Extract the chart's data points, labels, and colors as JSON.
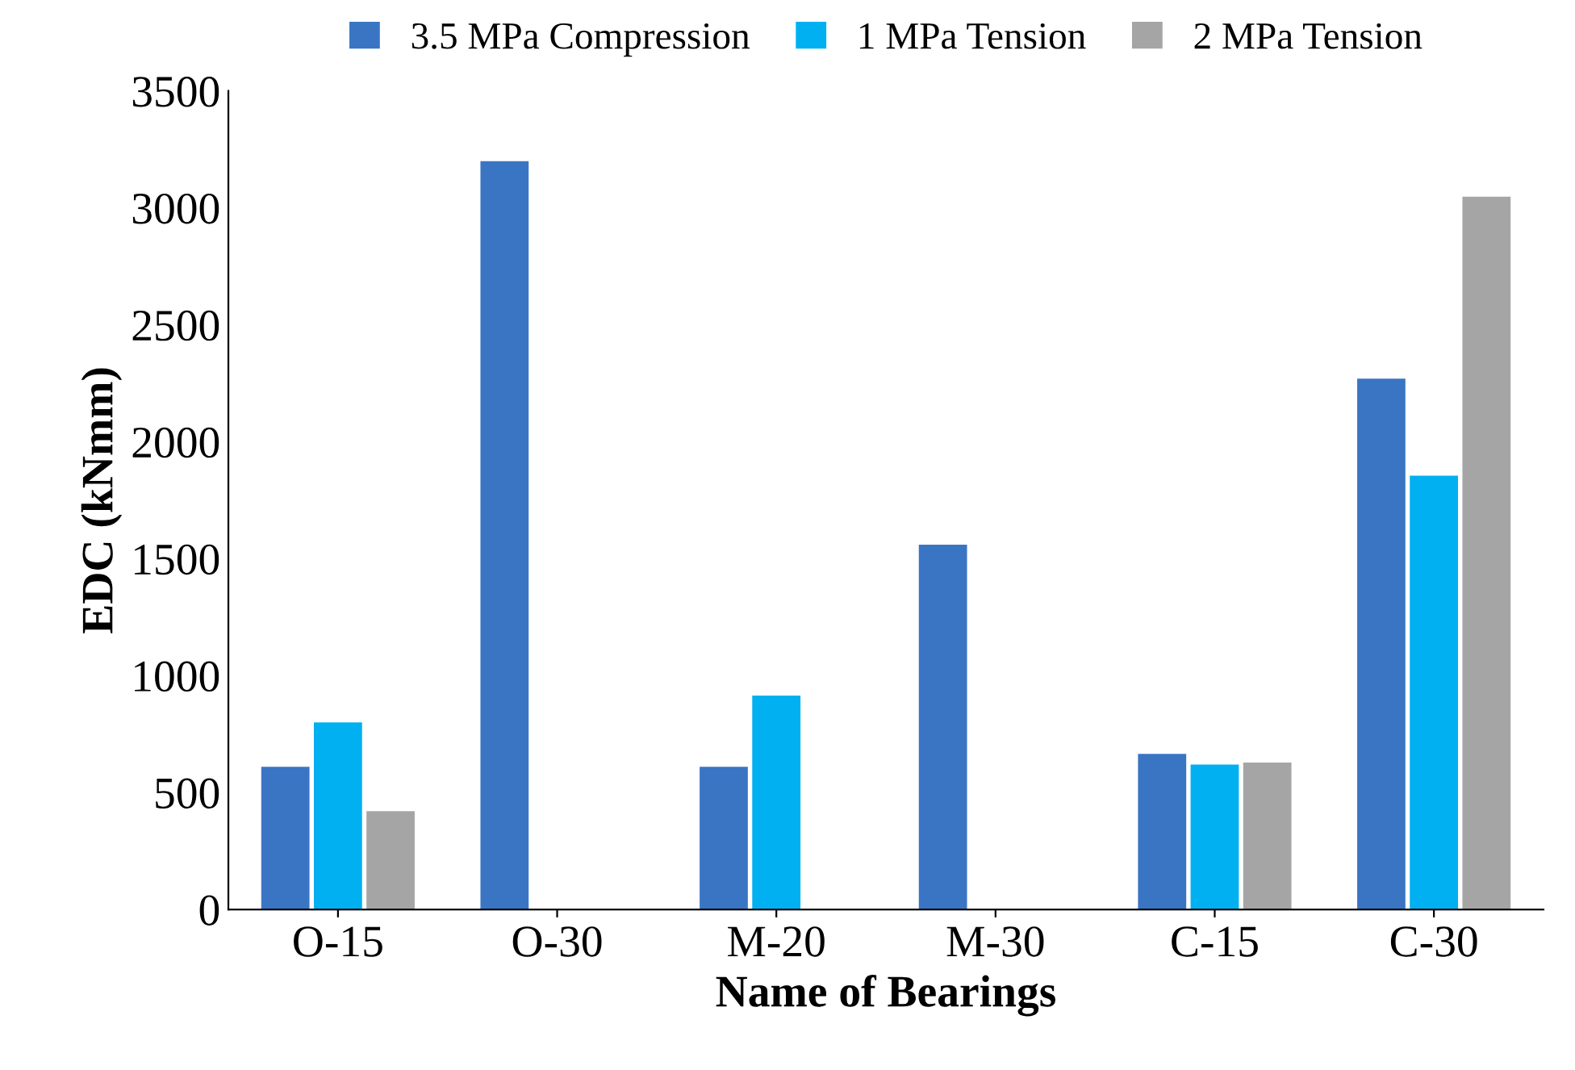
{
  "chart_data": {
    "type": "bar",
    "xlabel": "Name of Bearings",
    "ylabel": "EDC (kNmm)",
    "categories": [
      "O-15",
      "O-30",
      "M-20",
      "M-30",
      "C-15",
      "C-30"
    ],
    "series": [
      {
        "name": "3.5 MPa Compression",
        "color": "#3a75c4",
        "values": [
          610,
          3200,
          610,
          1560,
          665,
          2270
        ]
      },
      {
        "name": "1 MPa Tension",
        "color": "#00b0f0",
        "values": [
          800,
          null,
          915,
          null,
          620,
          1855
        ]
      },
      {
        "name": "2 MPa Tension",
        "color": "#a5a5a5",
        "values": [
          420,
          null,
          null,
          null,
          628,
          3048
        ]
      }
    ],
    "ylim": [
      0,
      3500
    ],
    "yticks": [
      0,
      500,
      1000,
      1500,
      2000,
      2500,
      3000,
      3500
    ],
    "grid": false,
    "legend": "top"
  }
}
